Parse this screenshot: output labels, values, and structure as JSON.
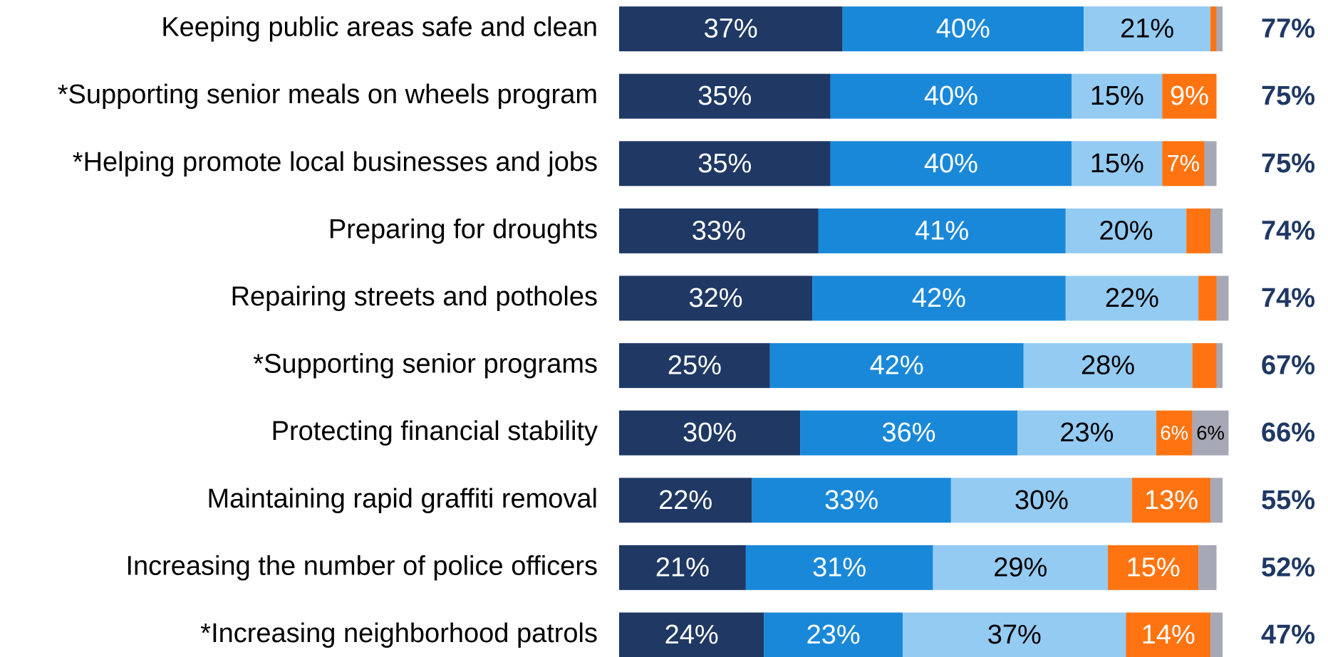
{
  "chart_data": {
    "type": "stacked-bar",
    "orientation": "horizontal",
    "xlim": [
      0,
      100
    ],
    "categories": [
      "Keeping public areas safe and clean",
      "*Supporting senior meals on wheels program",
      "*Helping promote local businesses and jobs",
      "Preparing for droughts",
      "Repairing streets and potholes",
      "*Supporting senior programs",
      "Protecting financial stability",
      "Maintaining rapid graffiti removal",
      "Increasing the number of police officers",
      "*Increasing neighborhood patrols"
    ],
    "series": [
      {
        "color": "#1f3864",
        "text_color": "#ffffff",
        "values": [
          37,
          35,
          35,
          33,
          32,
          25,
          30,
          22,
          21,
          24
        ],
        "value_labels": [
          "37%",
          "35%",
          "35%",
          "33%",
          "32%",
          "25%",
          "30%",
          "22%",
          "21%",
          "24%"
        ]
      },
      {
        "color": "#1a88d9",
        "text_color": "#ffffff",
        "values": [
          40,
          40,
          40,
          41,
          42,
          42,
          36,
          33,
          31,
          23
        ],
        "value_labels": [
          "40%",
          "40%",
          "40%",
          "41%",
          "42%",
          "42%",
          "36%",
          "33%",
          "31%",
          "23%"
        ]
      },
      {
        "color": "#94cbf3",
        "text_color": "#000000",
        "values": [
          21,
          15,
          15,
          20,
          22,
          28,
          23,
          30,
          29,
          37
        ],
        "value_labels": [
          "21%",
          "15%",
          "15%",
          "20%",
          "22%",
          "28%",
          "23%",
          "30%",
          "29%",
          "37%"
        ]
      },
      {
        "color": "#ff7411",
        "text_color": "#ffffff",
        "values": [
          1,
          9,
          7,
          4,
          3,
          4,
          6,
          13,
          15,
          14
        ],
        "value_labels": [
          null,
          "9%",
          "7%",
          null,
          null,
          null,
          "6%",
          "13%",
          "15%",
          "14%"
        ]
      },
      {
        "color": "#a6a8b6",
        "text_color": "#000000",
        "values": [
          1,
          0,
          2,
          2,
          2,
          1,
          6,
          2,
          3,
          2
        ],
        "value_labels": [
          null,
          null,
          null,
          null,
          null,
          null,
          "6%",
          null,
          null,
          null
        ]
      }
    ],
    "totals": {
      "color": "#1f3864",
      "values": [
        77,
        75,
        75,
        74,
        74,
        67,
        66,
        55,
        52,
        47
      ],
      "value_labels": [
        "77%",
        "75%",
        "75%",
        "74%",
        "74%",
        "67%",
        "66%",
        "55%",
        "52%",
        "47%"
      ]
    }
  }
}
